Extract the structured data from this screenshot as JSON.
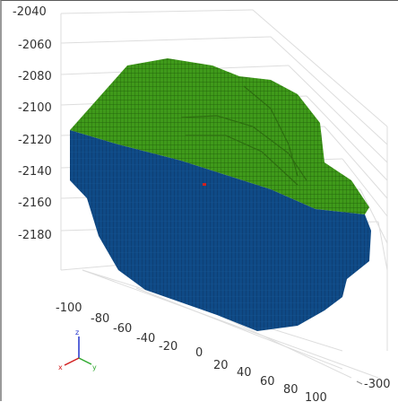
{
  "viewer": {
    "z_ticks": [
      "-2040",
      "-2060",
      "-2080",
      "-2100",
      "-2120",
      "-2140",
      "-2160",
      "-2180"
    ],
    "x_ticks": [
      "-100",
      "-80",
      "-60",
      "-40",
      "-20",
      "0",
      "20",
      "40",
      "60",
      "80",
      "100"
    ],
    "y_ticks": [
      "-300"
    ],
    "triad": {
      "x": "x",
      "y": "y",
      "z": "z"
    },
    "colors": {
      "upper_volume": "#3f9a1a",
      "lower_volume": "#0f4a86",
      "triad_x": "#d21f1f",
      "triad_y": "#2fa82f",
      "triad_z": "#2233cc",
      "marker": "#d02020"
    },
    "icons": [
      "axis-triad-icon"
    ]
  }
}
